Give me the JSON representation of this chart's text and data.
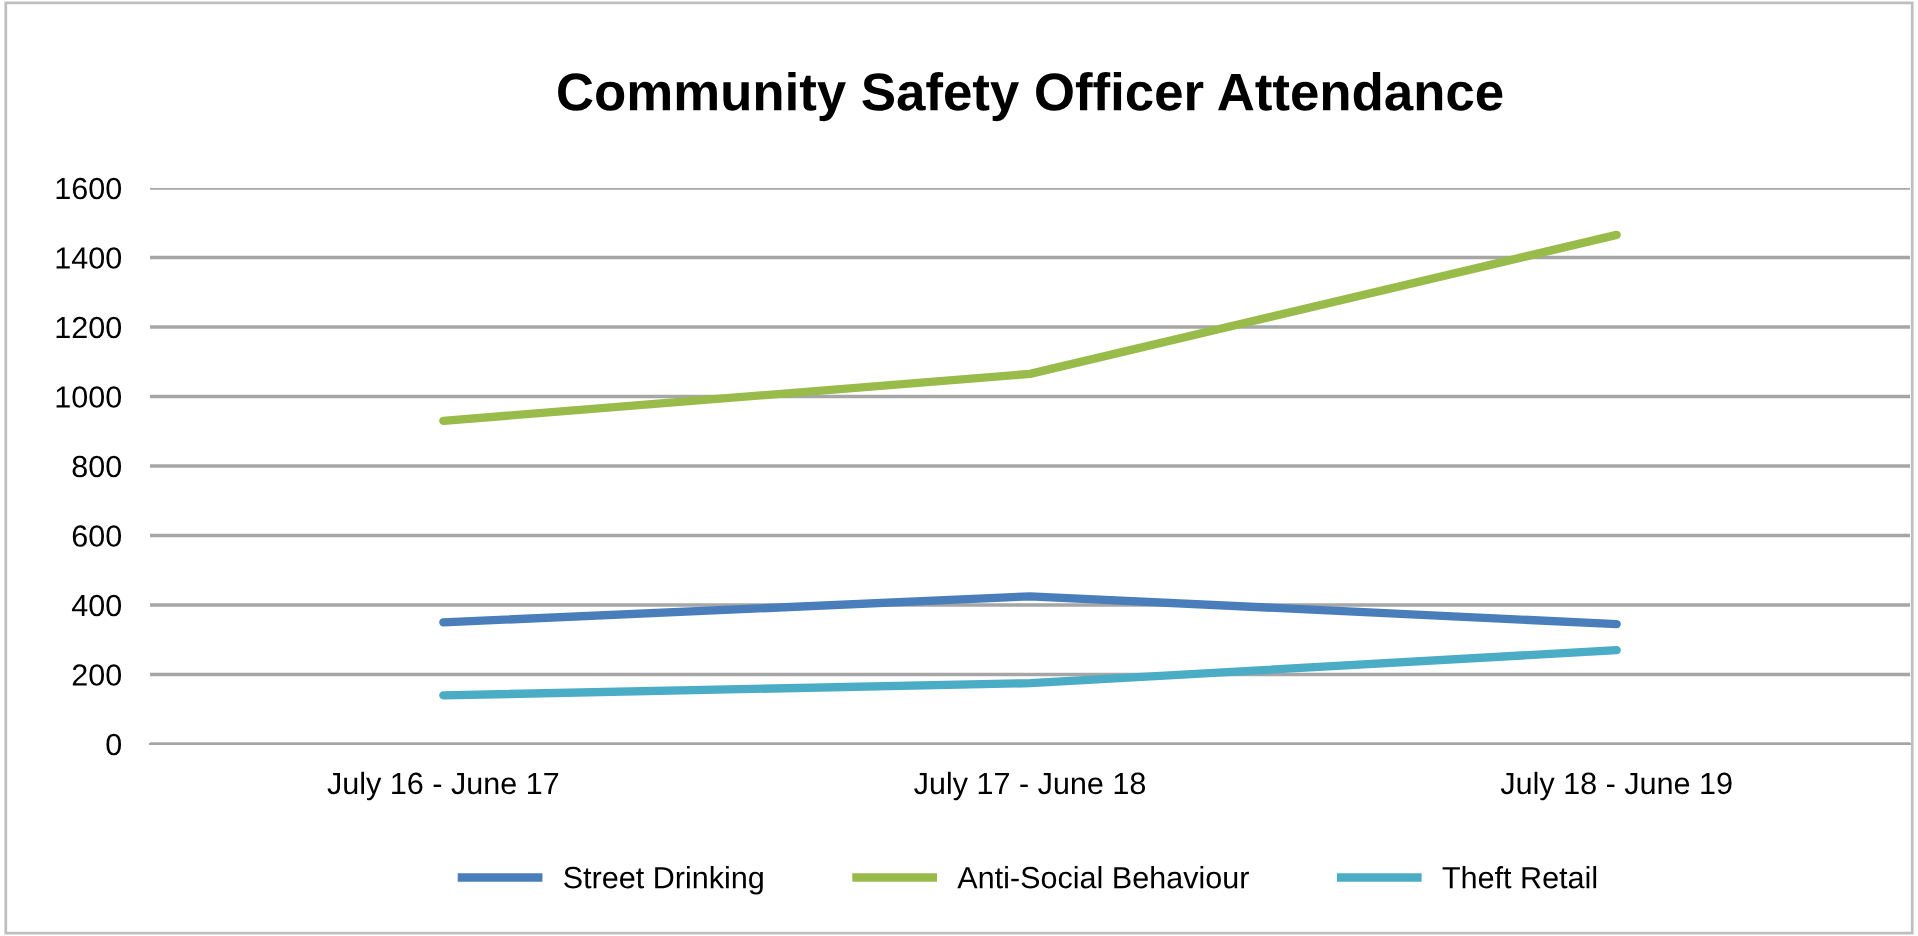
{
  "chart_data": {
    "type": "line",
    "title": "Community Safety Officer Attendance",
    "categories": [
      "July 16 - June 17",
      "July 17 - June 18",
      "July 18 - June 19"
    ],
    "series": [
      {
        "name": "Street Drinking",
        "color": "#4a7ebb",
        "values": [
          350,
          425,
          345
        ]
      },
      {
        "name": "Anti-Social Behaviour",
        "color": "#98bb4a",
        "values": [
          930,
          1065,
          1465
        ]
      },
      {
        "name": "Theft Retail",
        "color": "#4bacc6",
        "values": [
          140,
          175,
          270
        ]
      }
    ],
    "ylim": [
      0,
      1600
    ],
    "yticks": [
      0,
      200,
      400,
      600,
      800,
      1000,
      1200,
      1400,
      1600
    ],
    "grid": "y",
    "legend": "bottom",
    "marker": "none",
    "line_style": "solid"
  }
}
